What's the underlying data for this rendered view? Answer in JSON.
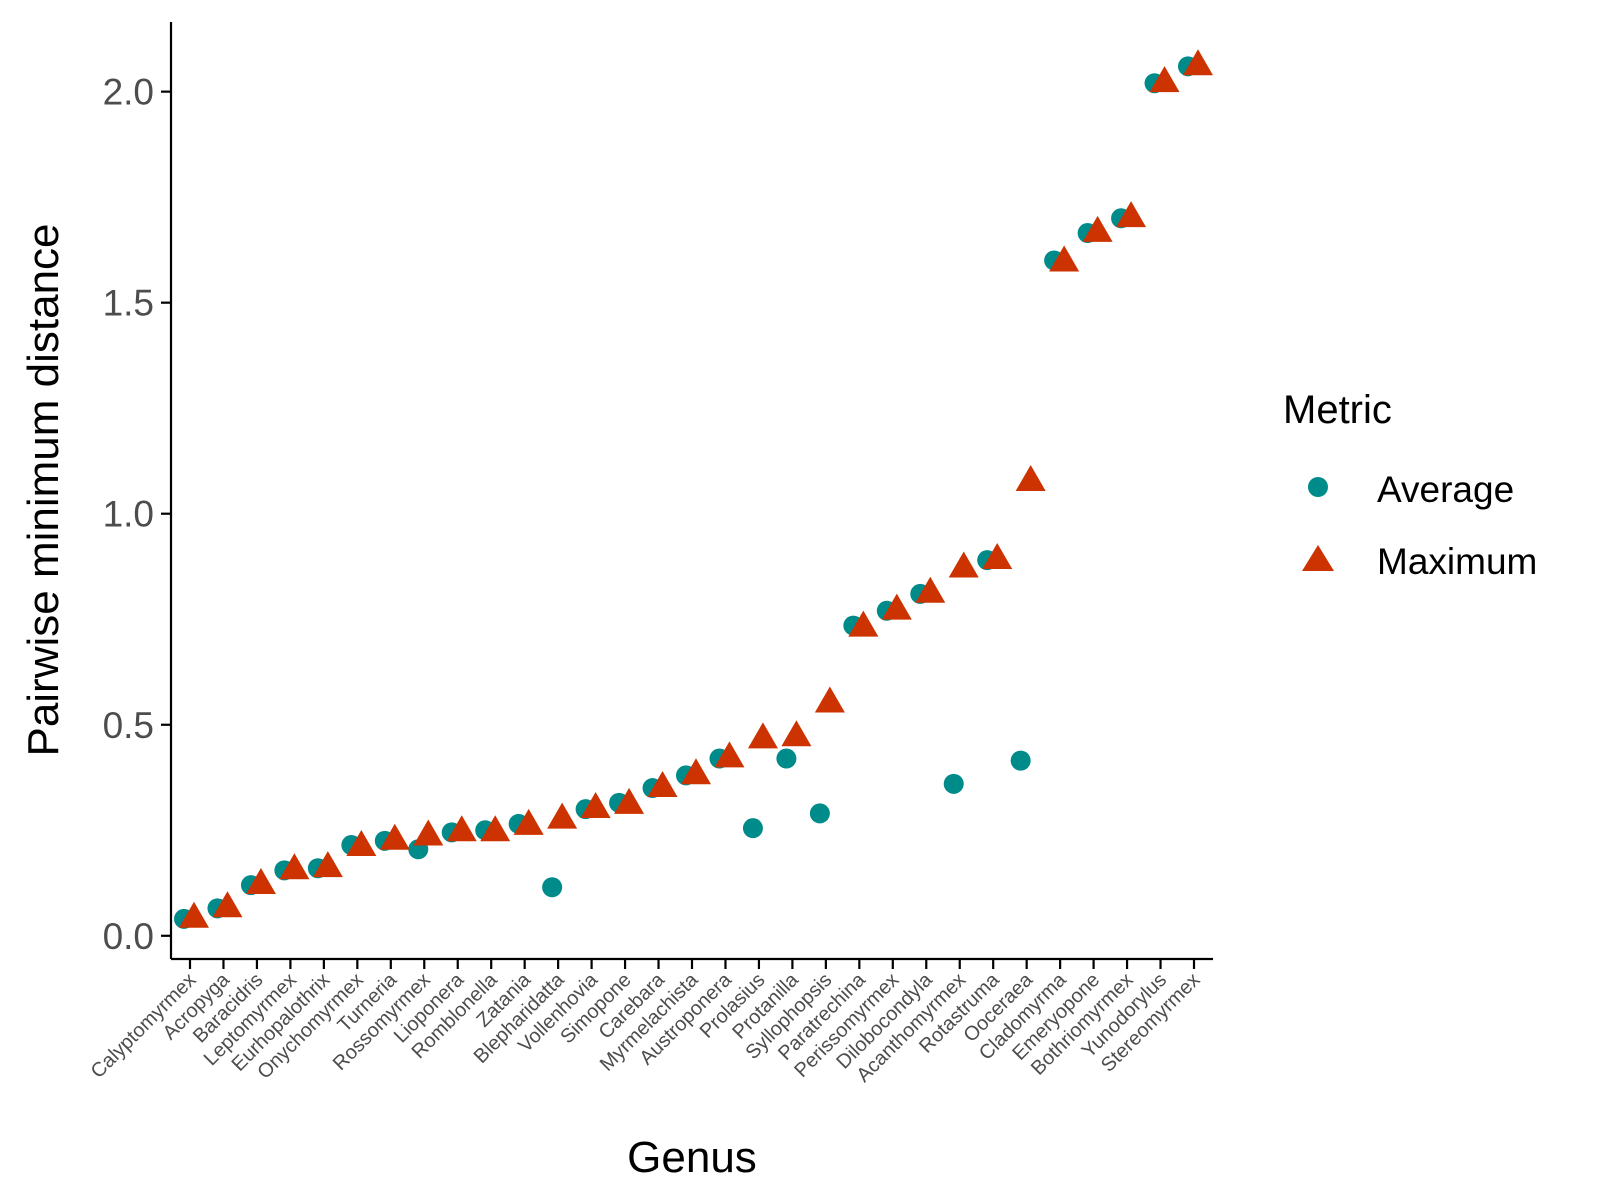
{
  "chart_data": {
    "type": "scatter",
    "xlabel": "Genus",
    "ylabel": "Pairwise minimum distance",
    "ylim": [
      -0.055,
      2.165
    ],
    "yticks": [
      0.0,
      0.5,
      1.0,
      1.5,
      2.0
    ],
    "ytick_labels": [
      "0.0",
      "0.5",
      "1.0",
      "1.5",
      "2.0"
    ],
    "grid": false,
    "legend": {
      "title": "Metric",
      "placement": "right",
      "entries": [
        "Average",
        "Maximum"
      ]
    },
    "categories": [
      "Calyptomyrmex",
      "Acropyga",
      "Baracidris",
      "Leptomyrmex",
      "Eurhopalothrix",
      "Onychomyrmex",
      "Turneria",
      "Rossomyrmex",
      "Lioponera",
      "Romblonella",
      "Zatania",
      "Blepharidatta",
      "Vollenhovia",
      "Simopone",
      "Carebara",
      "Myrmelachista",
      "Austroponera",
      "Prolasius",
      "Protanilla",
      "Syllophopsis",
      "Paratrechina",
      "Perissomyrmex",
      "Dilobocondyla",
      "Acanthomyrmex",
      "Rotastruma",
      "Ooceraea",
      "Cladomyrma",
      "Emeryopone",
      "Bothriomyrmex",
      "Yunodorylus",
      "Stereomyrmex"
    ],
    "series": [
      {
        "name": "Average",
        "color": "#008B8B",
        "marker": "circle",
        "values": [
          0.04,
          0.065,
          0.12,
          0.155,
          0.16,
          0.215,
          0.225,
          0.205,
          0.245,
          0.25,
          0.265,
          0.115,
          0.3,
          0.315,
          0.35,
          0.38,
          0.42,
          0.255,
          0.42,
          0.29,
          0.735,
          0.77,
          0.81,
          0.36,
          0.89,
          0.415,
          1.6,
          1.665,
          1.7,
          2.02,
          2.06
        ]
      },
      {
        "name": "Maximum",
        "color": "#CC3300",
        "marker": "triangle",
        "values": [
          0.045,
          0.07,
          0.125,
          0.16,
          0.165,
          0.215,
          0.23,
          0.24,
          0.25,
          0.25,
          0.265,
          0.28,
          0.305,
          0.315,
          0.355,
          0.385,
          0.425,
          0.47,
          0.475,
          0.555,
          0.735,
          0.775,
          0.815,
          0.875,
          0.895,
          1.08,
          1.6,
          1.67,
          1.705,
          2.025,
          2.065
        ]
      }
    ]
  }
}
